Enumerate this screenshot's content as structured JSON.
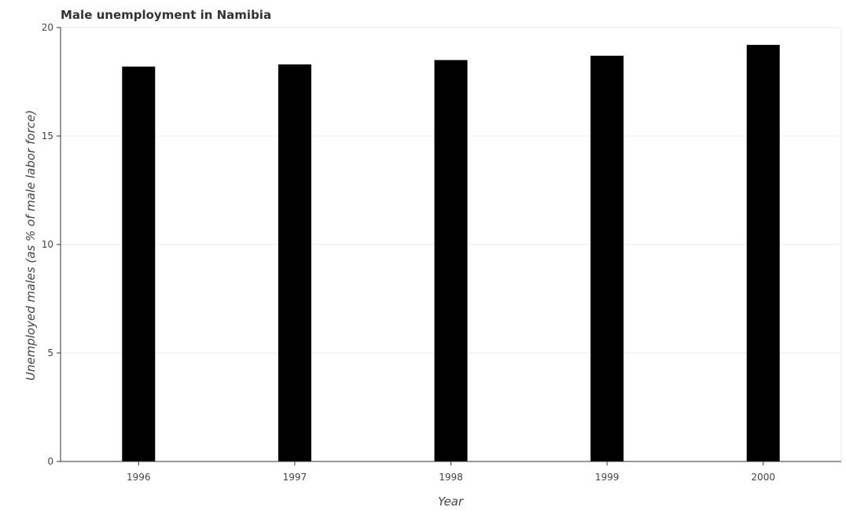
{
  "chart_data": {
    "type": "bar",
    "title": "Male unemployment in Namibia",
    "xlabel": "Year",
    "ylabel": "Unemployed males (as % of male labor force)",
    "categories": [
      "1996",
      "1997",
      "1998",
      "1999",
      "2000"
    ],
    "values": [
      18.2,
      18.3,
      18.5,
      18.7,
      19.2
    ],
    "ylim": [
      0,
      20
    ],
    "yticks": [
      0,
      5,
      10,
      15,
      20
    ],
    "grid": "horizontal",
    "legend": "none",
    "colors": {
      "bar": "#000000",
      "grid": "#ebebeb",
      "axis": "#333333",
      "text": "#444444"
    }
  }
}
